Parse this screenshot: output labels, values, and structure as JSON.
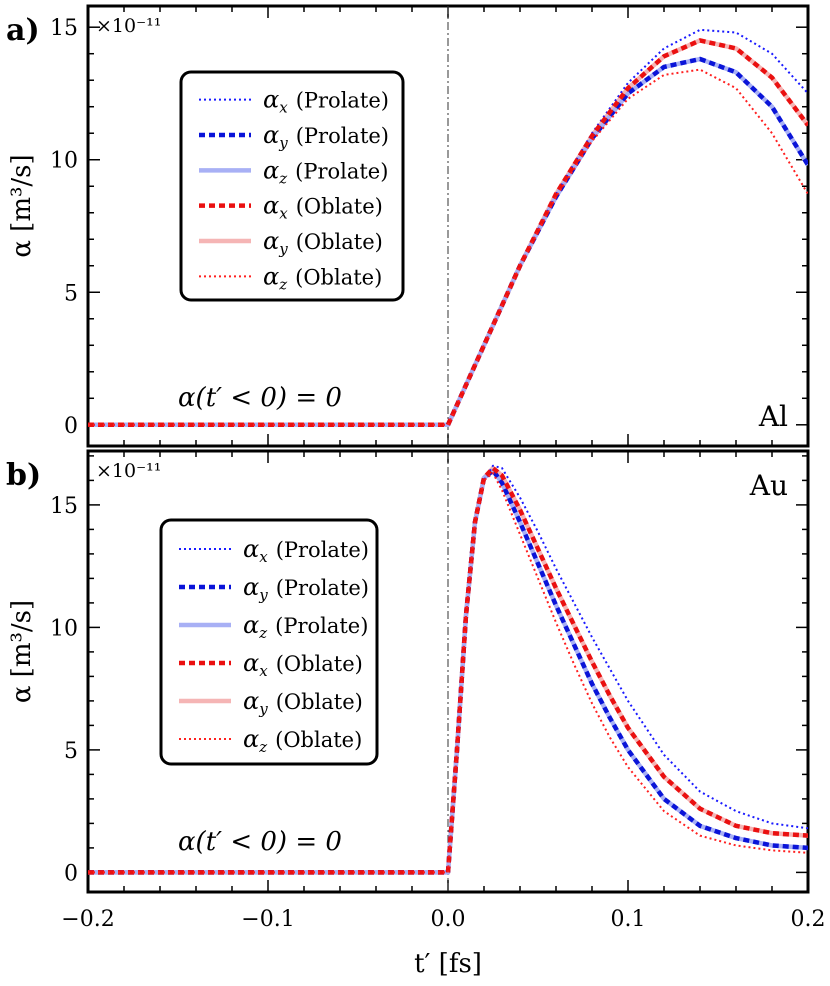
{
  "colors": {
    "prolate_x": "#1a1aff",
    "prolate_y": "#0a14d8",
    "prolate_z": "#a8b0f5",
    "oblate_x": "#ea1010",
    "oblate_y": "#f5b5b5",
    "oblate_z": "#ff2020"
  },
  "chart_data": [
    {
      "type": "line",
      "panel_label": "a)",
      "metal": "Al",
      "ylabel": "α [m³/s]",
      "xlabel": "t′ [fs]",
      "y_scale_label": "×10⁻¹¹",
      "annotation": "α(t′ < 0) = 0",
      "xlim": [
        -0.2,
        0.2
      ],
      "ylim": [
        -0.8,
        15.8
      ],
      "yticks": [
        0,
        5,
        10,
        15
      ],
      "ytick_labels": [
        "0",
        "5",
        "10",
        "15"
      ],
      "xticks": [
        -0.2,
        -0.1,
        0.0,
        0.1,
        0.2
      ],
      "xtick_labels": [
        "−0.2",
        "−0.1",
        "0.0",
        "0.1",
        "0.2"
      ],
      "legend_location": "upper-left",
      "vline_x": 0.0,
      "series": [
        {
          "name": "αx (Prolate)",
          "sym": "α",
          "sub": "x",
          "shape": "(Prolate)",
          "style": "dotted",
          "color_key": "prolate_x",
          "x": [
            -0.2,
            0.0,
            0.02,
            0.04,
            0.06,
            0.08,
            0.1,
            0.12,
            0.14,
            0.16,
            0.18,
            0.2
          ],
          "y": [
            0,
            0,
            3.0,
            6.0,
            8.7,
            11.0,
            12.9,
            14.2,
            14.9,
            14.8,
            14.0,
            12.5
          ]
        },
        {
          "name": "αy (Prolate)",
          "sym": "α",
          "sub": "y",
          "shape": "(Prolate)",
          "style": "dashed",
          "color_key": "prolate_y",
          "x": [
            -0.2,
            0.0,
            0.02,
            0.04,
            0.06,
            0.08,
            0.1,
            0.12,
            0.14,
            0.16,
            0.18,
            0.2
          ],
          "y": [
            0,
            0,
            3.0,
            6.0,
            8.6,
            10.8,
            12.5,
            13.5,
            13.8,
            13.3,
            12.0,
            9.8
          ]
        },
        {
          "name": "αz (Prolate)",
          "sym": "α",
          "sub": "z",
          "shape": "(Prolate)",
          "style": "solid",
          "color_key": "prolate_z",
          "x": [
            -0.2,
            0.0,
            0.02,
            0.04,
            0.06,
            0.08,
            0.1,
            0.12,
            0.14,
            0.16,
            0.18,
            0.2
          ],
          "y": [
            0,
            0,
            3.0,
            6.0,
            8.6,
            10.8,
            12.5,
            13.5,
            13.8,
            13.3,
            12.0,
            9.8
          ]
        },
        {
          "name": "αx (Oblate)",
          "sym": "α",
          "sub": "x",
          "shape": "(Oblate)",
          "style": "dashed",
          "color_key": "oblate_x",
          "x": [
            -0.2,
            0.0,
            0.02,
            0.04,
            0.06,
            0.08,
            0.1,
            0.12,
            0.14,
            0.16,
            0.18,
            0.2
          ],
          "y": [
            0,
            0,
            3.0,
            6.0,
            8.7,
            10.9,
            12.7,
            13.9,
            14.5,
            14.2,
            13.1,
            11.3
          ]
        },
        {
          "name": "αy (Oblate)",
          "sym": "α",
          "sub": "y",
          "shape": "(Oblate)",
          "style": "solid",
          "color_key": "oblate_y",
          "x": [
            -0.2,
            0.0,
            0.02,
            0.04,
            0.06,
            0.08,
            0.1,
            0.12,
            0.14,
            0.16,
            0.18,
            0.2
          ],
          "y": [
            0,
            0,
            3.0,
            6.0,
            8.7,
            10.9,
            12.7,
            13.9,
            14.5,
            14.2,
            13.1,
            11.3
          ]
        },
        {
          "name": "αz (Oblate)",
          "sym": "α",
          "sub": "z",
          "shape": "(Oblate)",
          "style": "dotted",
          "color_key": "oblate_z",
          "x": [
            -0.2,
            0.0,
            0.02,
            0.04,
            0.06,
            0.08,
            0.1,
            0.12,
            0.14,
            0.16,
            0.18,
            0.2
          ],
          "y": [
            0,
            0,
            3.0,
            6.0,
            8.6,
            10.7,
            12.3,
            13.2,
            13.4,
            12.7,
            11.0,
            8.7
          ]
        }
      ]
    },
    {
      "type": "line",
      "panel_label": "b)",
      "metal": "Au",
      "ylabel": "α [m³/s]",
      "xlabel": "t′ [fs]",
      "y_scale_label": "×10⁻¹¹",
      "annotation": "α(t′ < 0) = 0",
      "xlim": [
        -0.2,
        0.2
      ],
      "ylim": [
        -0.8,
        17.2
      ],
      "yticks": [
        0,
        5,
        10,
        15
      ],
      "ytick_labels": [
        "0",
        "5",
        "10",
        "15"
      ],
      "xticks": [
        -0.2,
        -0.1,
        0.0,
        0.1,
        0.2
      ],
      "xtick_labels": [
        "−0.2",
        "−0.1",
        "0.0",
        "0.1",
        "0.2"
      ],
      "legend_location": "upper-left",
      "vline_x": 0.0,
      "series": [
        {
          "name": "αx (Prolate)",
          "sym": "α",
          "sub": "x",
          "shape": "(Prolate)",
          "style": "dotted",
          "color_key": "prolate_x",
          "x": [
            -0.2,
            0.0,
            0.005,
            0.01,
            0.015,
            0.02,
            0.025,
            0.03,
            0.04,
            0.05,
            0.06,
            0.07,
            0.08,
            0.09,
            0.1,
            0.12,
            0.14,
            0.16,
            0.18,
            0.2
          ],
          "y": [
            0,
            0,
            5.0,
            10.5,
            14.2,
            16.0,
            16.6,
            16.5,
            15.3,
            13.9,
            12.4,
            11.0,
            9.6,
            8.3,
            7.0,
            4.8,
            3.3,
            2.5,
            2.0,
            1.8
          ]
        },
        {
          "name": "αy (Prolate)",
          "sym": "α",
          "sub": "y",
          "shape": "(Prolate)",
          "style": "dashed",
          "color_key": "prolate_y",
          "x": [
            -0.2,
            0.0,
            0.005,
            0.01,
            0.015,
            0.02,
            0.025,
            0.03,
            0.04,
            0.05,
            0.06,
            0.07,
            0.08,
            0.09,
            0.1,
            0.12,
            0.14,
            0.16,
            0.18,
            0.2
          ],
          "y": [
            0,
            0,
            5.0,
            10.5,
            14.3,
            16.1,
            16.4,
            15.9,
            14.3,
            12.6,
            10.9,
            9.3,
            7.7,
            6.3,
            5.0,
            3.0,
            1.9,
            1.4,
            1.1,
            1.0
          ]
        },
        {
          "name": "αz (Prolate)",
          "sym": "α",
          "sub": "z",
          "shape": "(Prolate)",
          "style": "solid",
          "color_key": "prolate_z",
          "x": [
            -0.2,
            0.0,
            0.005,
            0.01,
            0.015,
            0.02,
            0.025,
            0.03,
            0.04,
            0.05,
            0.06,
            0.07,
            0.08,
            0.09,
            0.1,
            0.12,
            0.14,
            0.16,
            0.18,
            0.2
          ],
          "y": [
            0,
            0,
            5.0,
            10.5,
            14.3,
            16.1,
            16.4,
            15.9,
            14.3,
            12.6,
            10.9,
            9.3,
            7.7,
            6.3,
            5.0,
            3.0,
            1.9,
            1.4,
            1.1,
            1.0
          ]
        },
        {
          "name": "αx (Oblate)",
          "sym": "α",
          "sub": "x",
          "shape": "(Oblate)",
          "style": "dashed",
          "color_key": "oblate_x",
          "x": [
            -0.2,
            0.0,
            0.005,
            0.01,
            0.015,
            0.02,
            0.025,
            0.03,
            0.04,
            0.05,
            0.06,
            0.07,
            0.08,
            0.09,
            0.1,
            0.12,
            0.14,
            0.16,
            0.18,
            0.2
          ],
          "y": [
            0,
            0,
            5.0,
            10.5,
            14.3,
            16.1,
            16.5,
            16.2,
            14.8,
            13.2,
            11.6,
            10.1,
            8.6,
            7.2,
            5.9,
            3.9,
            2.6,
            1.9,
            1.6,
            1.5
          ]
        },
        {
          "name": "αy (Oblate)",
          "sym": "α",
          "sub": "y",
          "shape": "(Oblate)",
          "style": "solid",
          "color_key": "oblate_y",
          "x": [
            -0.2,
            0.0,
            0.005,
            0.01,
            0.015,
            0.02,
            0.025,
            0.03,
            0.04,
            0.05,
            0.06,
            0.07,
            0.08,
            0.09,
            0.1,
            0.12,
            0.14,
            0.16,
            0.18,
            0.2
          ],
          "y": [
            0,
            0,
            5.0,
            10.5,
            14.3,
            16.1,
            16.5,
            16.2,
            14.8,
            13.2,
            11.6,
            10.1,
            8.6,
            7.2,
            5.9,
            3.9,
            2.6,
            1.9,
            1.6,
            1.5
          ]
        },
        {
          "name": "αz (Oblate)",
          "sym": "α",
          "sub": "z",
          "shape": "(Oblate)",
          "style": "dotted",
          "color_key": "oblate_z",
          "x": [
            -0.2,
            0.0,
            0.005,
            0.01,
            0.015,
            0.02,
            0.025,
            0.03,
            0.04,
            0.05,
            0.06,
            0.07,
            0.08,
            0.09,
            0.1,
            0.12,
            0.14,
            0.16,
            0.18,
            0.2
          ],
          "y": [
            0,
            0,
            5.0,
            10.5,
            14.3,
            16.0,
            16.3,
            15.6,
            13.8,
            12.0,
            10.2,
            8.5,
            6.9,
            5.5,
            4.3,
            2.5,
            1.5,
            1.1,
            0.9,
            0.8
          ]
        }
      ]
    }
  ]
}
